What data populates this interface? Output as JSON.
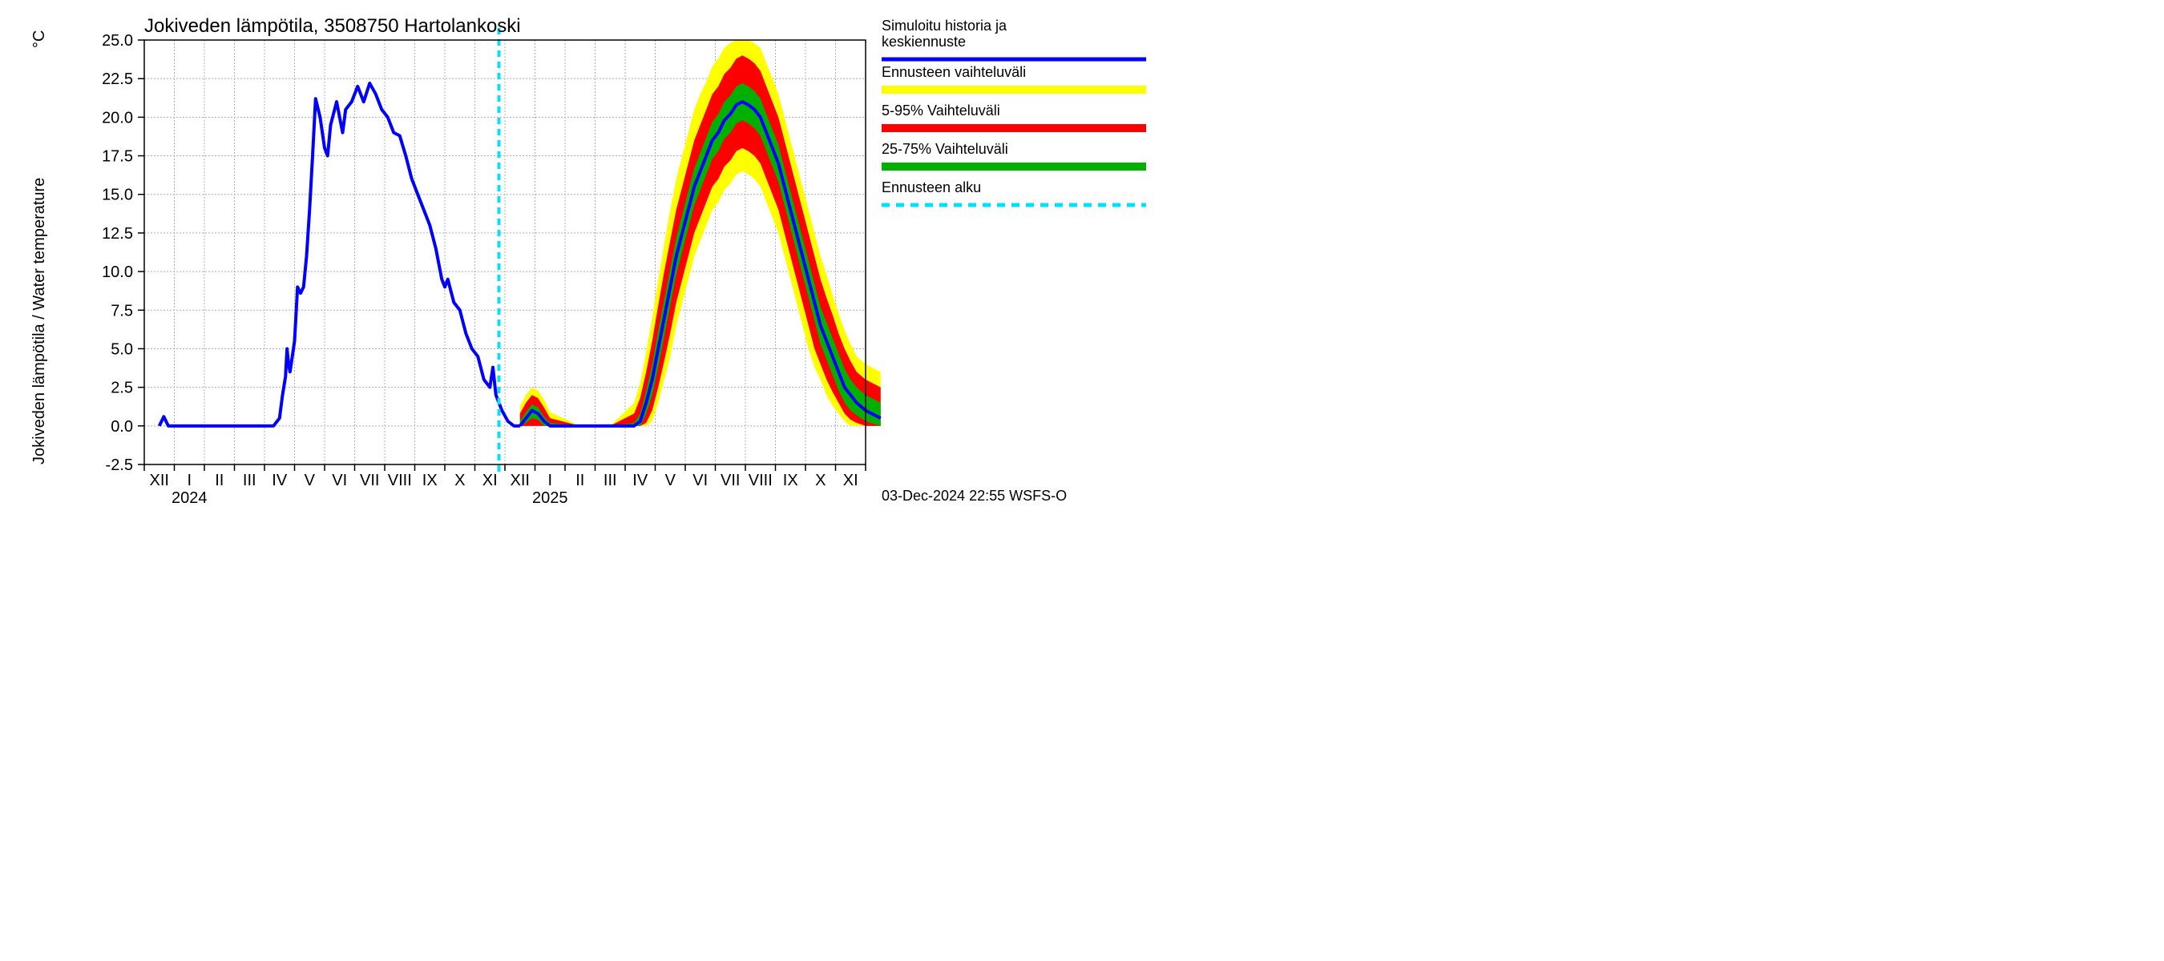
{
  "chart": {
    "type": "line-with-bands",
    "title": "Jokiveden lämpötila, 3508750 Hartolankoski",
    "y_label_fi": "Jokiveden lämpötila / Water temperature",
    "y_unit": "°C",
    "footer": "03-Dec-2024 22:55 WSFS-O",
    "background_color": "#ffffff",
    "grid_color": "#b0b0b0",
    "axis_color": "#000000",
    "title_fontsize": 24,
    "label_fontsize": 20,
    "tick_fontsize": 20,
    "legend_fontsize": 18,
    "ylim": [
      -2.5,
      25.0
    ],
    "ytick_step": 2.5,
    "ytick_labels": [
      "-2.5",
      "0.0",
      "2.5",
      "5.0",
      "7.5",
      "10.0",
      "12.5",
      "15.0",
      "17.5",
      "20.0",
      "22.5",
      "25.0"
    ],
    "x_months": [
      "XII",
      "I",
      "II",
      "III",
      "IV",
      "V",
      "VI",
      "VII",
      "VIII",
      "IX",
      "X",
      "XI",
      "XII",
      "I",
      "II",
      "III",
      "IV",
      "V",
      "VI",
      "VII",
      "VIII",
      "IX",
      "X",
      "XI"
    ],
    "x_year_labels": [
      {
        "label": "2024",
        "at_index": 1
      },
      {
        "label": "2025",
        "at_index": 13
      }
    ],
    "forecast_start_index": 12,
    "colors": {
      "history_line": "#0000ff",
      "band_0_100": "#ffff00",
      "band_5_95": "#ff0000",
      "band_25_75": "#00b000",
      "forecast_start": "#00e0ff"
    },
    "line_width_history": 4,
    "line_width_forecast": 4,
    "dash_forecast_start": "8 6",
    "legend": {
      "items": [
        {
          "key": "history",
          "label": "Simuloitu historia ja keskiennuste",
          "color": "#0000ff",
          "type": "line"
        },
        {
          "key": "band0",
          "label": "Ennusteen vaihteluväli",
          "color": "#ffff00",
          "type": "band"
        },
        {
          "key": "band5",
          "label": "5-95% Vaihteluväli",
          "color": "#ff0000",
          "type": "band"
        },
        {
          "key": "band25",
          "label": "25-75% Vaihteluväli",
          "color": "#00b000",
          "type": "band"
        },
        {
          "key": "fstart",
          "label": "Ennusteen alku",
          "color": "#00e0ff",
          "type": "dash"
        }
      ]
    },
    "series": {
      "history": [
        [
          0.0,
          0.0
        ],
        [
          0.15,
          0.6
        ],
        [
          0.3,
          0.0
        ],
        [
          1.0,
          0.0
        ],
        [
          2.0,
          0.0
        ],
        [
          3.0,
          0.0
        ],
        [
          3.8,
          0.0
        ],
        [
          4.0,
          0.5
        ],
        [
          4.1,
          2.0
        ],
        [
          4.2,
          3.2
        ],
        [
          4.25,
          5.0
        ],
        [
          4.3,
          4.0
        ],
        [
          4.35,
          3.5
        ],
        [
          4.5,
          5.5
        ],
        [
          4.6,
          9.0
        ],
        [
          4.7,
          8.6
        ],
        [
          4.8,
          9.0
        ],
        [
          4.9,
          11.0
        ],
        [
          5.0,
          14.0
        ],
        [
          5.1,
          17.5
        ],
        [
          5.2,
          21.2
        ],
        [
          5.35,
          20.0
        ],
        [
          5.5,
          18.0
        ],
        [
          5.6,
          17.5
        ],
        [
          5.7,
          19.5
        ],
        [
          5.9,
          21.0
        ],
        [
          6.0,
          20.0
        ],
        [
          6.1,
          19.0
        ],
        [
          6.2,
          20.5
        ],
        [
          6.4,
          21.0
        ],
        [
          6.6,
          22.0
        ],
        [
          6.8,
          21.0
        ],
        [
          7.0,
          22.2
        ],
        [
          7.2,
          21.5
        ],
        [
          7.4,
          20.5
        ],
        [
          7.6,
          20.0
        ],
        [
          7.8,
          19.0
        ],
        [
          8.0,
          18.8
        ],
        [
          8.2,
          17.5
        ],
        [
          8.4,
          16.0
        ],
        [
          8.6,
          15.0
        ],
        [
          8.8,
          14.0
        ],
        [
          9.0,
          13.0
        ],
        [
          9.2,
          11.5
        ],
        [
          9.4,
          9.5
        ],
        [
          9.5,
          9.0
        ],
        [
          9.6,
          9.5
        ],
        [
          9.8,
          8.0
        ],
        [
          10.0,
          7.5
        ],
        [
          10.2,
          6.0
        ],
        [
          10.4,
          5.0
        ],
        [
          10.6,
          4.5
        ],
        [
          10.8,
          3.0
        ],
        [
          11.0,
          2.5
        ],
        [
          11.1,
          3.8
        ],
        [
          11.2,
          2.0
        ],
        [
          11.4,
          1.0
        ],
        [
          11.6,
          0.3
        ],
        [
          11.8,
          0.0
        ],
        [
          12.0,
          0.0
        ]
      ],
      "forecast_median": [
        [
          12.0,
          0.0
        ],
        [
          12.2,
          0.5
        ],
        [
          12.4,
          1.0
        ],
        [
          12.6,
          0.8
        ],
        [
          12.8,
          0.3
        ],
        [
          13.0,
          0.0
        ],
        [
          14.0,
          0.0
        ],
        [
          15.0,
          0.0
        ],
        [
          15.8,
          0.0
        ],
        [
          16.0,
          0.3
        ],
        [
          16.2,
          1.5
        ],
        [
          16.4,
          3.0
        ],
        [
          16.6,
          5.0
        ],
        [
          16.8,
          7.0
        ],
        [
          17.0,
          9.0
        ],
        [
          17.2,
          11.0
        ],
        [
          17.4,
          12.5
        ],
        [
          17.6,
          14.0
        ],
        [
          17.8,
          15.5
        ],
        [
          18.0,
          16.5
        ],
        [
          18.2,
          17.5
        ],
        [
          18.4,
          18.5
        ],
        [
          18.6,
          19.0
        ],
        [
          18.8,
          19.8
        ],
        [
          19.0,
          20.2
        ],
        [
          19.2,
          20.8
        ],
        [
          19.4,
          21.0
        ],
        [
          19.6,
          20.8
        ],
        [
          19.8,
          20.5
        ],
        [
          20.0,
          20.0
        ],
        [
          20.2,
          19.0
        ],
        [
          20.4,
          18.0
        ],
        [
          20.6,
          17.0
        ],
        [
          20.8,
          15.5
        ],
        [
          21.0,
          14.0
        ],
        [
          21.2,
          12.5
        ],
        [
          21.4,
          11.0
        ],
        [
          21.6,
          9.5
        ],
        [
          21.8,
          8.0
        ],
        [
          22.0,
          6.5
        ],
        [
          22.2,
          5.5
        ],
        [
          22.4,
          4.5
        ],
        [
          22.6,
          3.5
        ],
        [
          22.8,
          2.5
        ],
        [
          23.0,
          2.0
        ],
        [
          23.2,
          1.5
        ],
        [
          23.5,
          1.0
        ],
        [
          24.0,
          0.5
        ]
      ],
      "band_25_75": [
        [
          12.0,
          0.0,
          0.3
        ],
        [
          12.2,
          0.2,
          0.9
        ],
        [
          12.4,
          0.5,
          1.4
        ],
        [
          12.6,
          0.4,
          1.2
        ],
        [
          12.8,
          0.0,
          0.6
        ],
        [
          13.0,
          0.0,
          0.2
        ],
        [
          14.0,
          0.0,
          0.0
        ],
        [
          15.0,
          0.0,
          0.0
        ],
        [
          15.8,
          0.0,
          0.2
        ],
        [
          16.0,
          0.0,
          0.8
        ],
        [
          16.2,
          0.8,
          2.3
        ],
        [
          16.4,
          2.0,
          4.0
        ],
        [
          16.6,
          3.8,
          6.2
        ],
        [
          16.8,
          5.8,
          8.2
        ],
        [
          17.0,
          7.8,
          10.2
        ],
        [
          17.2,
          9.8,
          12.2
        ],
        [
          17.4,
          11.3,
          13.7
        ],
        [
          17.6,
          12.8,
          15.2
        ],
        [
          17.8,
          14.3,
          16.7
        ],
        [
          18.0,
          15.3,
          17.7
        ],
        [
          18.2,
          16.3,
          18.7
        ],
        [
          18.4,
          17.3,
          19.7
        ],
        [
          18.6,
          17.8,
          20.2
        ],
        [
          18.8,
          18.6,
          21.0
        ],
        [
          19.0,
          19.0,
          21.4
        ],
        [
          19.2,
          19.6,
          22.0
        ],
        [
          19.4,
          19.8,
          22.2
        ],
        [
          19.6,
          19.6,
          22.0
        ],
        [
          19.8,
          19.3,
          21.7
        ],
        [
          20.0,
          18.8,
          21.2
        ],
        [
          20.2,
          17.8,
          20.2
        ],
        [
          20.4,
          16.8,
          19.2
        ],
        [
          20.6,
          15.8,
          18.2
        ],
        [
          20.8,
          14.3,
          16.7
        ],
        [
          21.0,
          12.8,
          15.2
        ],
        [
          21.2,
          11.3,
          13.7
        ],
        [
          21.4,
          9.8,
          12.2
        ],
        [
          21.6,
          8.3,
          10.7
        ],
        [
          21.8,
          6.8,
          9.2
        ],
        [
          22.0,
          5.3,
          7.7
        ],
        [
          22.2,
          4.3,
          6.7
        ],
        [
          22.4,
          3.3,
          5.7
        ],
        [
          22.6,
          2.3,
          4.7
        ],
        [
          22.8,
          1.5,
          3.7
        ],
        [
          23.0,
          1.0,
          3.0
        ],
        [
          23.2,
          0.7,
          2.5
        ],
        [
          23.5,
          0.3,
          2.0
        ],
        [
          24.0,
          0.0,
          1.5
        ]
      ],
      "band_5_95": [
        [
          12.0,
          0.0,
          0.8
        ],
        [
          12.2,
          0.0,
          1.5
        ],
        [
          12.4,
          0.0,
          2.0
        ],
        [
          12.6,
          0.0,
          1.8
        ],
        [
          12.8,
          0.0,
          1.2
        ],
        [
          13.0,
          0.0,
          0.5
        ],
        [
          14.0,
          0.0,
          0.0
        ],
        [
          15.0,
          0.0,
          0.0
        ],
        [
          15.8,
          0.0,
          0.8
        ],
        [
          16.0,
          0.0,
          1.8
        ],
        [
          16.2,
          0.2,
          3.5
        ],
        [
          16.4,
          1.0,
          5.5
        ],
        [
          16.6,
          2.5,
          7.8
        ],
        [
          16.8,
          4.2,
          10.0
        ],
        [
          17.0,
          6.0,
          12.0
        ],
        [
          17.2,
          8.0,
          14.0
        ],
        [
          17.4,
          9.5,
          15.5
        ],
        [
          17.6,
          11.0,
          17.0
        ],
        [
          17.8,
          12.5,
          18.5
        ],
        [
          18.0,
          13.5,
          19.5
        ],
        [
          18.2,
          14.5,
          20.5
        ],
        [
          18.4,
          15.5,
          21.5
        ],
        [
          18.6,
          16.0,
          22.0
        ],
        [
          18.8,
          16.8,
          22.8
        ],
        [
          19.0,
          17.2,
          23.2
        ],
        [
          19.2,
          17.8,
          23.8
        ],
        [
          19.4,
          18.0,
          24.0
        ],
        [
          19.6,
          17.8,
          23.8
        ],
        [
          19.8,
          17.5,
          23.5
        ],
        [
          20.0,
          17.0,
          23.0
        ],
        [
          20.2,
          16.0,
          22.0
        ],
        [
          20.4,
          15.0,
          21.0
        ],
        [
          20.6,
          14.0,
          20.0
        ],
        [
          20.8,
          12.5,
          18.5
        ],
        [
          21.0,
          11.0,
          17.0
        ],
        [
          21.2,
          9.5,
          15.5
        ],
        [
          21.4,
          8.0,
          14.0
        ],
        [
          21.6,
          6.5,
          12.5
        ],
        [
          21.8,
          5.0,
          11.0
        ],
        [
          22.0,
          4.0,
          9.5
        ],
        [
          22.2,
          3.0,
          8.3
        ],
        [
          22.4,
          2.2,
          7.2
        ],
        [
          22.6,
          1.5,
          6.0
        ],
        [
          22.8,
          0.8,
          5.0
        ],
        [
          23.0,
          0.4,
          4.2
        ],
        [
          23.2,
          0.2,
          3.5
        ],
        [
          23.5,
          0.0,
          3.0
        ],
        [
          24.0,
          0.0,
          2.5
        ]
      ],
      "band_0_100": [
        [
          12.0,
          0.0,
          1.3
        ],
        [
          12.2,
          0.0,
          2.0
        ],
        [
          12.4,
          0.0,
          2.5
        ],
        [
          12.6,
          0.0,
          2.3
        ],
        [
          12.8,
          0.0,
          1.7
        ],
        [
          13.0,
          0.0,
          0.9
        ],
        [
          14.0,
          0.0,
          0.0
        ],
        [
          15.0,
          0.0,
          0.0
        ],
        [
          15.8,
          0.0,
          1.5
        ],
        [
          16.0,
          0.0,
          2.8
        ],
        [
          16.2,
          0.0,
          4.8
        ],
        [
          16.4,
          0.3,
          7.0
        ],
        [
          16.6,
          1.5,
          9.5
        ],
        [
          16.8,
          3.0,
          11.8
        ],
        [
          17.0,
          4.5,
          14.0
        ],
        [
          17.2,
          6.5,
          16.0
        ],
        [
          17.4,
          8.0,
          17.5
        ],
        [
          17.6,
          9.5,
          19.0
        ],
        [
          17.8,
          11.0,
          20.5
        ],
        [
          18.0,
          12.0,
          21.5
        ],
        [
          18.2,
          13.0,
          22.3
        ],
        [
          18.4,
          14.0,
          23.3
        ],
        [
          18.6,
          14.5,
          23.8
        ],
        [
          18.8,
          15.3,
          24.5
        ],
        [
          19.0,
          15.7,
          24.8
        ],
        [
          19.2,
          16.3,
          25.0
        ],
        [
          19.4,
          16.5,
          25.0
        ],
        [
          19.6,
          16.3,
          25.0
        ],
        [
          19.8,
          16.0,
          24.8
        ],
        [
          20.0,
          15.5,
          24.5
        ],
        [
          20.2,
          14.5,
          23.5
        ],
        [
          20.4,
          13.5,
          22.5
        ],
        [
          20.6,
          12.5,
          21.5
        ],
        [
          20.8,
          11.0,
          20.0
        ],
        [
          21.0,
          9.5,
          18.5
        ],
        [
          21.2,
          8.0,
          17.0
        ],
        [
          21.4,
          6.5,
          15.5
        ],
        [
          21.6,
          5.0,
          14.0
        ],
        [
          21.8,
          3.8,
          12.5
        ],
        [
          22.0,
          3.0,
          11.0
        ],
        [
          22.2,
          2.0,
          9.8
        ],
        [
          22.4,
          1.3,
          8.5
        ],
        [
          22.6,
          0.8,
          7.3
        ],
        [
          22.8,
          0.3,
          6.2
        ],
        [
          23.0,
          0.0,
          5.3
        ],
        [
          23.2,
          0.0,
          4.5
        ],
        [
          23.5,
          0.0,
          4.0
        ],
        [
          24.0,
          0.0,
          3.5
        ]
      ]
    }
  }
}
